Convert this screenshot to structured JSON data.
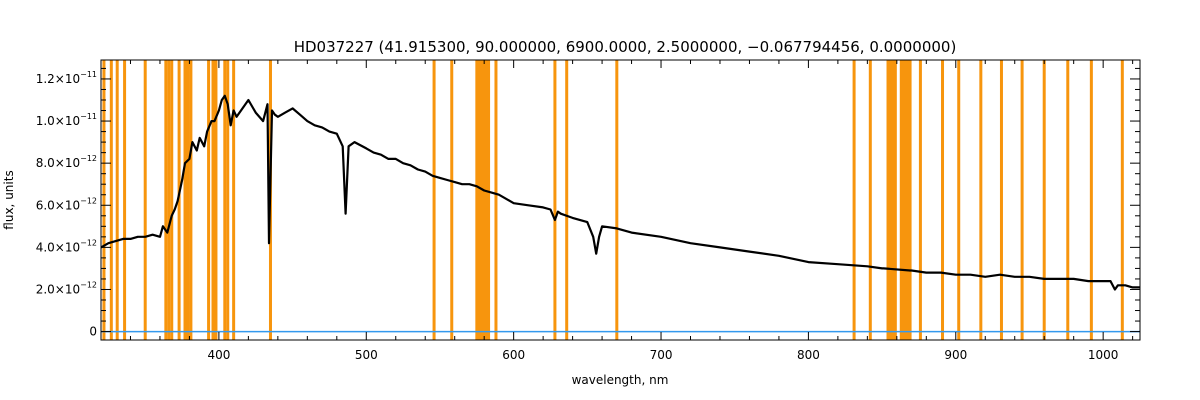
{
  "chart_data": {
    "type": "line",
    "title": "HD037227   (41.915300, 90.000000, 6900.0000, 2.5000000, −0.067794456, 0.0000000)",
    "xlabel": "wavelength, nm",
    "ylabel": "flux, units",
    "xlim": [
      320,
      1025
    ],
    "ylim": [
      -0.04,
      1.29
    ],
    "y_unit": "1e-11",
    "x_ticks": [
      400,
      500,
      600,
      700,
      800,
      900,
      1000
    ],
    "y_ticks": [
      {
        "value": 0,
        "label": "0",
        "exp": ""
      },
      {
        "value": 0.2,
        "label": "2.0×10",
        "exp": "−12"
      },
      {
        "value": 0.4,
        "label": "4.0×10",
        "exp": "−12"
      },
      {
        "value": 0.6,
        "label": "6.0×10",
        "exp": "−12"
      },
      {
        "value": 0.8,
        "label": "8.0×10",
        "exp": "−12"
      },
      {
        "value": 1.0,
        "label": "1.0×10",
        "exp": "−11"
      },
      {
        "value": 1.2,
        "label": "1.2×10",
        "exp": "−11"
      }
    ],
    "series": [
      {
        "color": "#000000",
        "x": [
          320,
          325,
          330,
          335,
          340,
          345,
          350,
          355,
          360,
          362,
          365,
          368,
          370,
          372,
          375,
          377,
          380,
          382,
          385,
          387,
          390,
          392,
          395,
          397,
          400,
          402,
          404,
          406,
          408,
          410,
          412,
          415,
          418,
          420,
          425,
          430,
          433,
          434,
          436,
          438,
          440,
          445,
          450,
          455,
          460,
          465,
          470,
          475,
          480,
          484,
          486,
          488,
          492,
          500,
          505,
          510,
          515,
          520,
          525,
          530,
          535,
          540,
          545,
          550,
          555,
          560,
          565,
          570,
          575,
          580,
          585,
          590,
          595,
          600,
          610,
          620,
          625,
          628,
          630,
          632,
          640,
          650,
          654,
          656,
          658,
          660,
          670,
          680,
          700,
          720,
          740,
          760,
          780,
          800,
          820,
          840,
          850,
          851,
          869,
          870,
          880,
          890,
          900,
          910,
          920,
          930,
          940,
          950,
          960,
          970,
          980,
          990,
          1000,
          1005,
          1008,
          1010,
          1015,
          1020,
          1025
        ],
        "y": [
          0.4,
          0.42,
          0.43,
          0.44,
          0.44,
          0.45,
          0.45,
          0.46,
          0.45,
          0.5,
          0.47,
          0.55,
          0.58,
          0.62,
          0.72,
          0.8,
          0.82,
          0.9,
          0.86,
          0.92,
          0.88,
          0.95,
          1.0,
          1.0,
          1.05,
          1.1,
          1.12,
          1.08,
          0.98,
          1.05,
          1.02,
          1.05,
          1.08,
          1.1,
          1.04,
          1.0,
          1.08,
          0.42,
          1.05,
          1.03,
          1.02,
          1.04,
          1.06,
          1.03,
          1.0,
          0.98,
          0.97,
          0.95,
          0.94,
          0.88,
          0.56,
          0.88,
          0.9,
          0.87,
          0.85,
          0.84,
          0.82,
          0.82,
          0.8,
          0.79,
          0.77,
          0.76,
          0.74,
          0.73,
          0.72,
          0.71,
          0.7,
          0.7,
          0.69,
          0.67,
          0.66,
          0.65,
          0.63,
          0.61,
          0.6,
          0.59,
          0.58,
          0.53,
          0.57,
          0.56,
          0.54,
          0.52,
          0.45,
          0.37,
          0.45,
          0.5,
          0.49,
          0.47,
          0.45,
          0.42,
          0.4,
          0.38,
          0.36,
          0.33,
          0.32,
          0.31,
          0.3,
          0.3,
          0.29,
          0.29,
          0.28,
          0.28,
          0.27,
          0.27,
          0.26,
          0.27,
          0.26,
          0.26,
          0.25,
          0.25,
          0.25,
          0.24,
          0.24,
          0.24,
          0.2,
          0.22,
          0.22,
          0.21,
          0.21
        ]
      },
      {
        "color": "#3399ee",
        "x": [
          320,
          1025
        ],
        "y": [
          0,
          0
        ]
      }
    ],
    "masked_lines_nm": [
      322,
      327,
      331,
      336,
      350,
      364,
      366,
      368,
      373,
      377,
      379,
      381,
      393,
      396,
      398,
      404,
      406,
      410,
      435,
      546,
      558,
      588,
      628,
      636,
      670,
      831,
      842,
      876,
      891,
      902,
      917,
      931,
      945,
      960,
      976,
      992,
      1013
    ],
    "masked_bands_nm": [
      [
        574,
        584
      ],
      [
        853,
        860
      ],
      [
        862,
        870
      ]
    ],
    "mask_color": "#f7950d",
    "grid": false
  }
}
